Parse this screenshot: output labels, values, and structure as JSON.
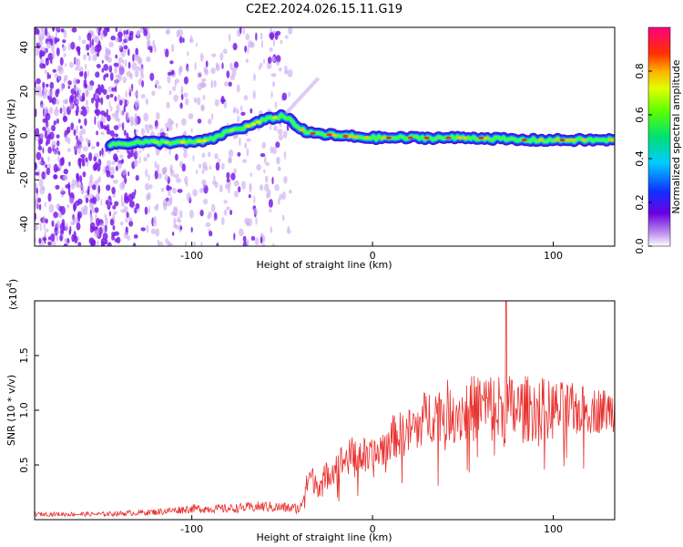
{
  "title": "C2E2.2024.026.15.11.G19",
  "colors": {
    "snr_line": "#e8312e",
    "track_core": "#e83030",
    "speckle": "#8a2be2"
  },
  "chart_data": [
    {
      "type": "heatmap",
      "xlabel": "Height of straight line (km)",
      "ylabel": "Frequency (Hz)",
      "xlim": [
        -187,
        134
      ],
      "ylim": [
        -50,
        49
      ],
      "xticks": [
        -100,
        0,
        100
      ],
      "yticks": [
        40,
        20,
        0,
        -20,
        -40
      ],
      "colorbar": {
        "label": "Normalized spectral amplitude",
        "range": [
          0.0,
          1.0
        ],
        "ticks": [
          "0.0",
          "0.2",
          "0.4",
          "0.6",
          "0.8"
        ],
        "colormap": "rainbow"
      },
      "track": {
        "x": [
          -145,
          -130,
          -120,
          -110,
          -100,
          -90,
          -80,
          -70,
          -60,
          -50,
          -45,
          -40,
          -35,
          -30,
          -20,
          0,
          20,
          40,
          60,
          80,
          100,
          120,
          134
        ],
        "y": [
          -4,
          -3,
          -3,
          -3,
          -3,
          -2,
          2,
          4,
          7,
          9,
          7,
          3,
          1,
          1,
          0,
          -1,
          -1,
          -1,
          -1,
          -2,
          -2,
          -2,
          -2
        ]
      },
      "grid": false
    },
    {
      "type": "line",
      "xlabel": "Height of straight line (km)",
      "ylabel": "SNR (10 * v/v)",
      "scale_label": "(x10^4)",
      "xlim": [
        -187,
        134
      ],
      "ylim": [
        0,
        2.0
      ],
      "xticks": [
        -100,
        0,
        100
      ],
      "yticks": [
        "0.5",
        "1.0",
        "1.5"
      ],
      "series": [
        {
          "x": [
            -187,
            -150,
            -120,
            -100,
            -80,
            -60,
            -40,
            -35,
            -30,
            -20,
            -10,
            0,
            10,
            20,
            30,
            40,
            50,
            60,
            70,
            80,
            90,
            100,
            110,
            120,
            134
          ],
          "values": [
            0.05,
            0.05,
            0.07,
            0.1,
            0.1,
            0.12,
            0.1,
            0.4,
            0.32,
            0.5,
            0.6,
            0.55,
            0.75,
            0.8,
            0.95,
            1.0,
            0.98,
            1.05,
            1.0,
            1.0,
            1.02,
            1.0,
            1.0,
            1.0,
            1.0
          ],
          "noise": [
            0.02,
            0.02,
            0.03,
            0.04,
            0.04,
            0.05,
            0.05,
            0.12,
            0.12,
            0.15,
            0.18,
            0.18,
            0.2,
            0.22,
            0.25,
            0.28,
            0.3,
            0.32,
            0.35,
            0.32,
            0.3,
            0.28,
            0.25,
            0.22,
            0.2
          ]
        }
      ],
      "spike": {
        "x": 74,
        "value": 2.0
      },
      "grid": false
    }
  ]
}
